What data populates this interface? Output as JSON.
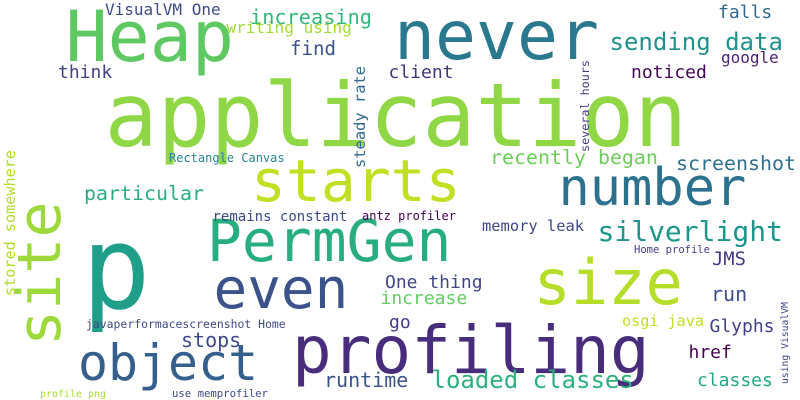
{
  "words": [
    {
      "text": "application",
      "color": "#8fd744"
    },
    {
      "text": "p",
      "color": "#1f9e89"
    },
    {
      "text": "Heap",
      "color": "#5ec962"
    },
    {
      "text": "never",
      "color": "#2a788e"
    },
    {
      "text": "starts",
      "color": "#c2df23"
    },
    {
      "text": "number",
      "color": "#2c728e"
    },
    {
      "text": "PermGen",
      "color": "#27ad81"
    },
    {
      "text": "size",
      "color": "#b5de2b"
    },
    {
      "text": "even",
      "color": "#3b528b"
    },
    {
      "text": "profiling",
      "color": "#472d7b"
    },
    {
      "text": "site",
      "color": "#9dd93b"
    },
    {
      "text": "object",
      "color": "#355f8d"
    },
    {
      "text": "silverlight",
      "color": "#1f968b"
    },
    {
      "text": "sending data",
      "color": "#20928c"
    },
    {
      "text": "loaded classes",
      "color": "#2cb17e"
    },
    {
      "text": "VisualVM One",
      "color": "#3e4a89"
    },
    {
      "text": "increasing",
      "color": "#35b779"
    },
    {
      "text": "writing using",
      "color": "#a0da39"
    },
    {
      "text": "falls",
      "color": "#31688e"
    },
    {
      "text": "find",
      "color": "#3b528b"
    },
    {
      "text": "google",
      "color": "#482576"
    },
    {
      "text": "think",
      "color": "#424086"
    },
    {
      "text": "client",
      "color": "#46327e"
    },
    {
      "text": "noticed",
      "color": "#450559"
    },
    {
      "text": "steady rate",
      "color": "#31688e"
    },
    {
      "text": "several hours",
      "color": "#443983"
    },
    {
      "text": "recently began",
      "color": "#6ccd5a"
    },
    {
      "text": "screenshot",
      "color": "#2d708e"
    },
    {
      "text": "particular",
      "color": "#29af7f"
    },
    {
      "text": "stored somewhere",
      "color": "#b0dd2f"
    },
    {
      "text": "Rectangle Canvas",
      "color": "#24868e"
    },
    {
      "text": "remains constant",
      "color": "#3f4889"
    },
    {
      "text": "antz profiler",
      "color": "#440154"
    },
    {
      "text": "memory leak",
      "color": "#3f4788"
    },
    {
      "text": "Home profile",
      "color": "#433e85"
    },
    {
      "text": "JMS",
      "color": "#453781"
    },
    {
      "text": "One thing",
      "color": "#404688"
    },
    {
      "text": "increase",
      "color": "#63cb5f"
    },
    {
      "text": "run",
      "color": "#3e4c8a"
    },
    {
      "text": "go",
      "color": "#453882"
    },
    {
      "text": "osgi java",
      "color": "#bddf26"
    },
    {
      "text": "Glyphs",
      "color": "#424186"
    },
    {
      "text": "javaperformacescreenshot Home",
      "color": "#3e4a89"
    },
    {
      "text": "stops",
      "color": "#3e4989"
    },
    {
      "text": "href",
      "color": "#440154"
    },
    {
      "text": "using VisualVM",
      "color": "#404588"
    },
    {
      "text": "runtime",
      "color": "#3b528b"
    },
    {
      "text": "classes",
      "color": "#22a884"
    },
    {
      "text": "profile png",
      "color": "#a8db34"
    },
    {
      "text": "use memprofiler",
      "color": "#3e4a89"
    }
  ]
}
